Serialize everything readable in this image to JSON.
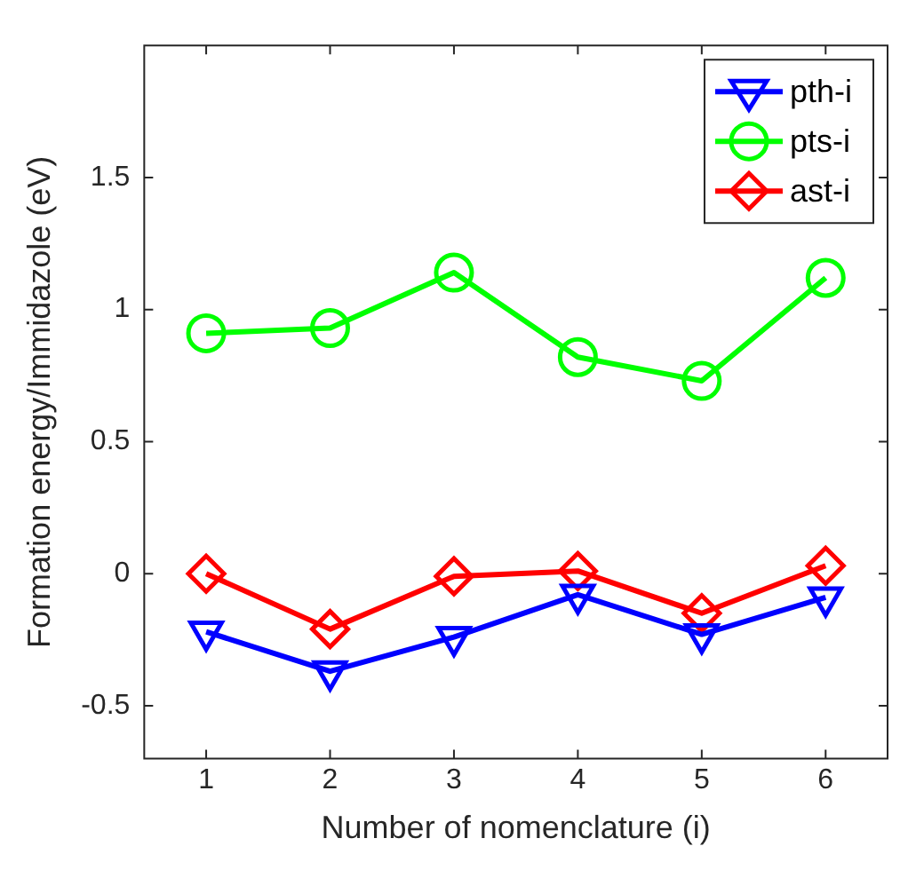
{
  "chart_data": {
    "type": "line",
    "xlabel": "Number of nomenclature (i)",
    "ylabel": "Formation energy/Immidazole (eV)",
    "x": [
      1,
      2,
      3,
      4,
      5,
      6
    ],
    "xlim": [
      0.5,
      6.5
    ],
    "xticks": [
      1,
      2,
      3,
      4,
      5,
      6
    ],
    "ylim": [
      -0.7,
      2
    ],
    "yticks": [
      -0.5,
      0,
      0.5,
      1,
      1.5
    ],
    "series": [
      {
        "name": "pth-i",
        "color": "#0000ff",
        "marker": "triangle",
        "values": [
          -0.22,
          -0.37,
          -0.24,
          -0.08,
          -0.23,
          -0.09
        ]
      },
      {
        "name": "pts-i",
        "color": "#00ff00",
        "marker": "circle",
        "values": [
          0.91,
          0.93,
          1.14,
          0.82,
          0.73,
          1.12
        ]
      },
      {
        "name": "ast-i",
        "color": "#ff0000",
        "marker": "diamond",
        "values": [
          0,
          -0.21,
          -0.01,
          0.01,
          -0.15,
          0.03
        ]
      }
    ],
    "grid": false,
    "legend": "top right",
    "line_style": "solid"
  }
}
